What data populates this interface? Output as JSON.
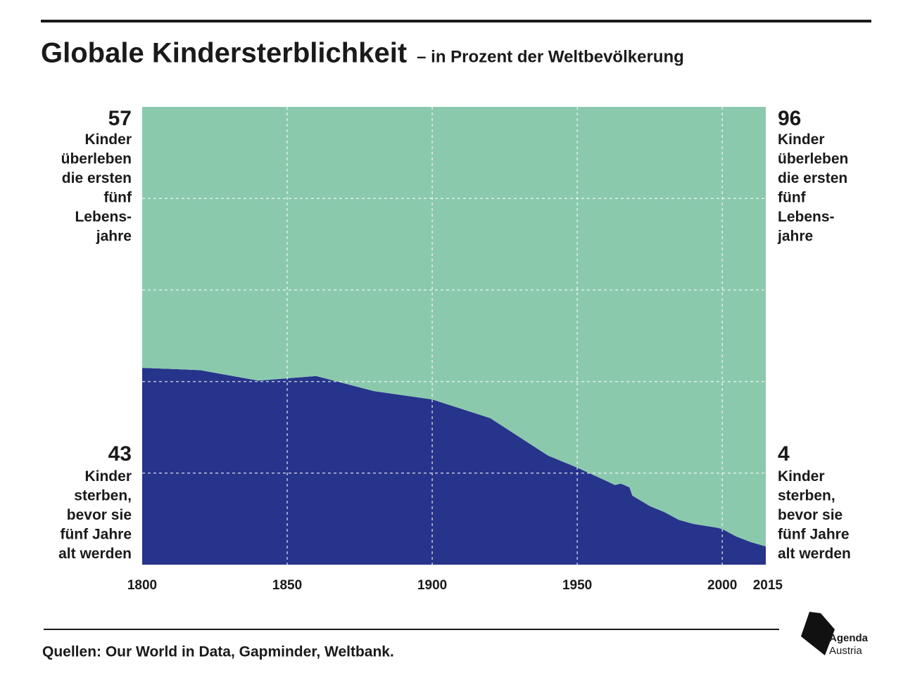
{
  "chart_data": {
    "type": "stacked_area",
    "title": "Globale Kindersterblichkeit",
    "subtitle": "– in Prozent der Weltbevölkerung",
    "source": "Quellen: Our World in Data, Gapminder, Weltbank.",
    "logo": [
      "Agenda",
      "Austria"
    ],
    "x": [
      1800,
      1820,
      1840,
      1860,
      1880,
      1900,
      1920,
      1940,
      1950,
      1960,
      1963,
      1965,
      1968,
      1969,
      1975,
      1980,
      1985,
      1990,
      1998,
      2000,
      2005,
      2010,
      2015
    ],
    "series": [
      {
        "color": "#27348b",
        "values": [
          43,
          42.5,
          40.2,
          41.2,
          37.9,
          36.1,
          32,
          23.8,
          21.2,
          18.3,
          17.4,
          17.7,
          16.9,
          15.1,
          12.8,
          11.5,
          9.8,
          8.9,
          8.1,
          7.8,
          6.1,
          4.9,
          4
        ]
      },
      {
        "color": "#8bc9ad",
        "values": [
          57,
          57.5,
          59.8,
          58.8,
          62.1,
          63.9,
          68,
          76.2,
          78.8,
          81.7,
          82.6,
          82.3,
          83.1,
          84.9,
          87.2,
          88.5,
          90.2,
          91.1,
          91.9,
          92.2,
          93.9,
          95.1,
          96
        ]
      }
    ],
    "annotations": {
      "survived": [
        "Kinder",
        "überleben",
        "die ersten",
        "fünf",
        "Lebens-",
        "jahre"
      ],
      "died": [
        "Kinder",
        "sterben,",
        "bevor sie",
        "fünf Jahre",
        "alt werden"
      ]
    },
    "xlim": [
      1800,
      2015
    ],
    "xticks": [
      1800,
      1850,
      1900,
      1950,
      2000,
      2015
    ],
    "ylim": [
      0,
      100
    ],
    "yticks": [
      0,
      20,
      40,
      60,
      80,
      100
    ],
    "ytick_labels": false,
    "grid": true
  }
}
